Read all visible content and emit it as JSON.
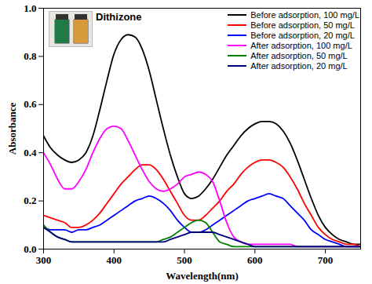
{
  "chart_data": {
    "type": "line",
    "x_label": "Wavelength(nm)",
    "y_label": "Absorbance",
    "annotations": [
      "Dithizone"
    ],
    "x": [
      300,
      310,
      320,
      330,
      340,
      350,
      360,
      370,
      380,
      390,
      400,
      410,
      420,
      430,
      440,
      450,
      460,
      470,
      480,
      490,
      500,
      510,
      520,
      530,
      540,
      550,
      560,
      570,
      580,
      590,
      600,
      610,
      620,
      630,
      640,
      650,
      660,
      670,
      680,
      690,
      700,
      710,
      720,
      730,
      740,
      750
    ],
    "series": [
      {
        "name": "Before adsorption, 100 mg/L",
        "color": "#000000",
        "values": [
          0.47,
          0.42,
          0.39,
          0.37,
          0.36,
          0.37,
          0.4,
          0.47,
          0.58,
          0.7,
          0.81,
          0.87,
          0.89,
          0.88,
          0.83,
          0.74,
          0.62,
          0.5,
          0.39,
          0.3,
          0.23,
          0.21,
          0.22,
          0.25,
          0.29,
          0.34,
          0.39,
          0.43,
          0.47,
          0.5,
          0.52,
          0.53,
          0.53,
          0.52,
          0.49,
          0.44,
          0.37,
          0.29,
          0.21,
          0.14,
          0.09,
          0.06,
          0.04,
          0.03,
          0.02,
          0.02
        ]
      },
      {
        "name": "Before adsorption, 50 mg/L",
        "color": "#ff0000",
        "values": [
          0.14,
          0.13,
          0.12,
          0.11,
          0.09,
          0.09,
          0.1,
          0.12,
          0.15,
          0.19,
          0.23,
          0.27,
          0.3,
          0.33,
          0.35,
          0.35,
          0.33,
          0.29,
          0.24,
          0.19,
          0.14,
          0.12,
          0.12,
          0.14,
          0.17,
          0.2,
          0.24,
          0.27,
          0.31,
          0.34,
          0.36,
          0.37,
          0.37,
          0.36,
          0.34,
          0.3,
          0.25,
          0.19,
          0.14,
          0.09,
          0.06,
          0.04,
          0.03,
          0.02,
          0.02,
          0.01
        ]
      },
      {
        "name": "Before adsorption, 20 mg/L",
        "color": "#0000ff",
        "values": [
          0.09,
          0.08,
          0.08,
          0.08,
          0.07,
          0.08,
          0.08,
          0.09,
          0.1,
          0.12,
          0.14,
          0.16,
          0.18,
          0.2,
          0.21,
          0.22,
          0.21,
          0.19,
          0.16,
          0.12,
          0.09,
          0.07,
          0.07,
          0.08,
          0.1,
          0.12,
          0.14,
          0.16,
          0.18,
          0.2,
          0.21,
          0.22,
          0.23,
          0.22,
          0.21,
          0.18,
          0.15,
          0.12,
          0.08,
          0.06,
          0.04,
          0.03,
          0.02,
          0.01,
          0.01,
          0.01
        ]
      },
      {
        "name": "After adsorption, 100 mg/L",
        "color": "#ff00ff",
        "values": [
          0.4,
          0.35,
          0.29,
          0.25,
          0.25,
          0.28,
          0.33,
          0.4,
          0.46,
          0.5,
          0.51,
          0.5,
          0.45,
          0.39,
          0.33,
          0.28,
          0.25,
          0.24,
          0.25,
          0.27,
          0.3,
          0.31,
          0.32,
          0.31,
          0.28,
          0.2,
          0.11,
          0.05,
          0.03,
          0.02,
          0.02,
          0.02,
          0.02,
          0.02,
          0.02,
          0.02,
          0.01,
          0.01,
          0.01,
          0.01,
          0.01,
          0.01,
          0.01,
          0.01,
          0.01,
          0.01
        ]
      },
      {
        "name": "After adsorption, 50 mg/L",
        "color": "#008000",
        "values": [
          0.1,
          0.07,
          0.05,
          0.04,
          0.03,
          0.03,
          0.03,
          0.03,
          0.03,
          0.03,
          0.03,
          0.03,
          0.03,
          0.03,
          0.03,
          0.03,
          0.03,
          0.04,
          0.05,
          0.07,
          0.09,
          0.11,
          0.12,
          0.11,
          0.07,
          0.03,
          0.02,
          0.01,
          0.01,
          0.01,
          0.01,
          0.01,
          0.01,
          0.01,
          0.01,
          0.01,
          0.01,
          0.01,
          0.01,
          0.01,
          0.01,
          0.01,
          0.01,
          0.01,
          0.01,
          0.01
        ]
      },
      {
        "name": "After adsorption, 20 mg/L",
        "color": "#000080",
        "values": [
          0.09,
          0.07,
          0.05,
          0.04,
          0.03,
          0.03,
          0.03,
          0.03,
          0.03,
          0.03,
          0.03,
          0.03,
          0.03,
          0.03,
          0.03,
          0.03,
          0.03,
          0.03,
          0.04,
          0.05,
          0.06,
          0.07,
          0.07,
          0.07,
          0.07,
          0.06,
          0.05,
          0.04,
          0.03,
          0.02,
          0.01,
          0.01,
          0.01,
          0.01,
          0.01,
          0.01,
          0.01,
          0.01,
          0.01,
          0.01,
          0.01,
          0.01,
          0.01,
          0.01,
          0.01,
          0.01
        ]
      }
    ],
    "xlim": [
      300,
      750
    ],
    "xticks": [
      300,
      400,
      500,
      600,
      700
    ],
    "ylim": [
      0,
      1.0
    ],
    "yticks": [
      {
        "value": 0,
        "label": "0.0"
      },
      0.2,
      0.4,
      0.6,
      0.8,
      {
        "value": 1.0,
        "label": "1.0"
      }
    ],
    "grid": false,
    "legend": "top-right"
  }
}
